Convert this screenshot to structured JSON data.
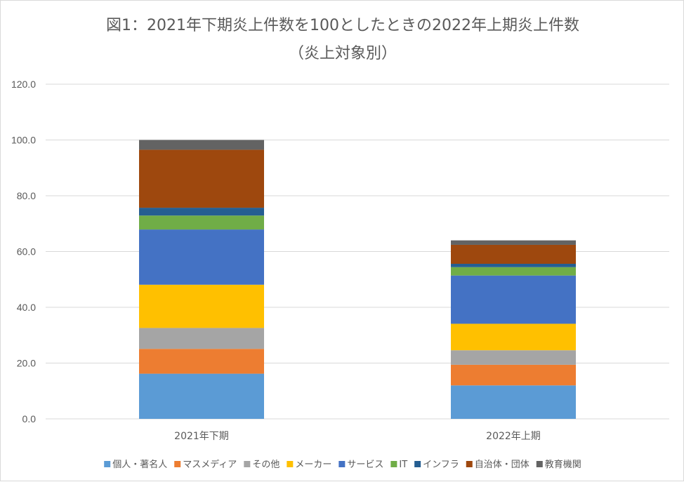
{
  "chart_data": {
    "type": "bar",
    "stacked": true,
    "title": "図1：2021年下期炎上件数を100としたときの2022年上期炎上件数",
    "subtitle": "（炎上対象別）",
    "categories": [
      "2021年下期",
      "2022年上期"
    ],
    "ylim": [
      0,
      120
    ],
    "yticks": [
      "0.0",
      "20.0",
      "40.0",
      "60.0",
      "80.0",
      "100.0",
      "120.0"
    ],
    "grid": true,
    "legend_position": "bottom",
    "series": [
      {
        "name": "個人・著名人",
        "color": "#5b9bd5",
        "values": [
          16.2,
          12.0
        ]
      },
      {
        "name": "マスメディア",
        "color": "#ed7d31",
        "values": [
          8.9,
          7.4
        ]
      },
      {
        "name": "その他",
        "color": "#a5a5a5",
        "values": [
          7.5,
          5.2
        ]
      },
      {
        "name": "メーカー",
        "color": "#ffc000",
        "values": [
          15.5,
          9.5
        ]
      },
      {
        "name": "サービス",
        "color": "#4472c4",
        "values": [
          19.8,
          17.3
        ]
      },
      {
        "name": "IT",
        "color": "#70ad47",
        "values": [
          5.0,
          3.0
        ]
      },
      {
        "name": "インフラ",
        "color": "#255e91",
        "values": [
          2.8,
          1.2
        ]
      },
      {
        "name": "自治体・団体",
        "color": "#9e480e",
        "values": [
          20.8,
          6.8
        ]
      },
      {
        "name": "教育機関",
        "color": "#636363",
        "values": [
          3.5,
          1.6
        ]
      }
    ]
  }
}
